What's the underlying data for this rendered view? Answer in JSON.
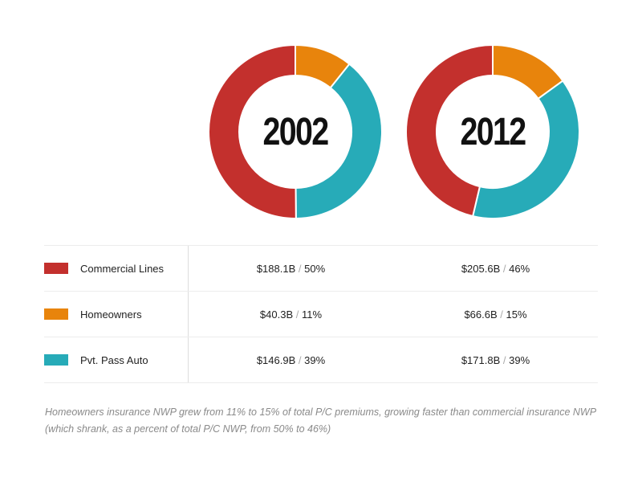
{
  "chart_data": {
    "type": "pie",
    "variant": "donut",
    "categories": [
      "Commercial Lines",
      "Homeowners",
      "Pvt. Pass Auto"
    ],
    "colors": [
      "#c3302d",
      "#e8840c",
      "#27abb8"
    ],
    "series": [
      {
        "name": "2002",
        "values_billion": [
          188.1,
          40.3,
          146.9
        ],
        "percent": [
          50,
          11,
          39
        ]
      },
      {
        "name": "2012",
        "values_billion": [
          205.6,
          66.6,
          171.8
        ],
        "percent": [
          46,
          15,
          39
        ]
      }
    ],
    "legend_position": "table-below",
    "caption": "Homeowners insurance NWP grew from 11% to 15% of total P/C premiums, growing faster than commercial insurance NWP (which shrank, as a percent of total P/C NWP, from 50% to 46%)"
  },
  "charts": [
    {
      "year": "2002"
    },
    {
      "year": "2012"
    }
  ],
  "table": {
    "rows": [
      {
        "label": "Commercial Lines",
        "color": "#c3302d",
        "v2002": "$188.1B",
        "p2002": "50%",
        "v2012": "$205.6B",
        "p2012": "46%"
      },
      {
        "label": "Homeowners",
        "color": "#e8840c",
        "v2002": "$40.3B",
        "p2002": "11%",
        "v2012": "$66.6B",
        "p2012": "15%"
      },
      {
        "label": "Pvt. Pass Auto",
        "color": "#27abb8",
        "v2002": "$146.9B",
        "p2002": "39%",
        "v2012": "$171.8B",
        "p2012": "39%"
      }
    ],
    "separator": "/"
  },
  "caption": "Homeowners insurance NWP grew from 11% to 15% of total P/C premiums, growing faster than commercial insurance NWP (which shrank, as a percent of total P/C NWP, from 50% to 46%)"
}
